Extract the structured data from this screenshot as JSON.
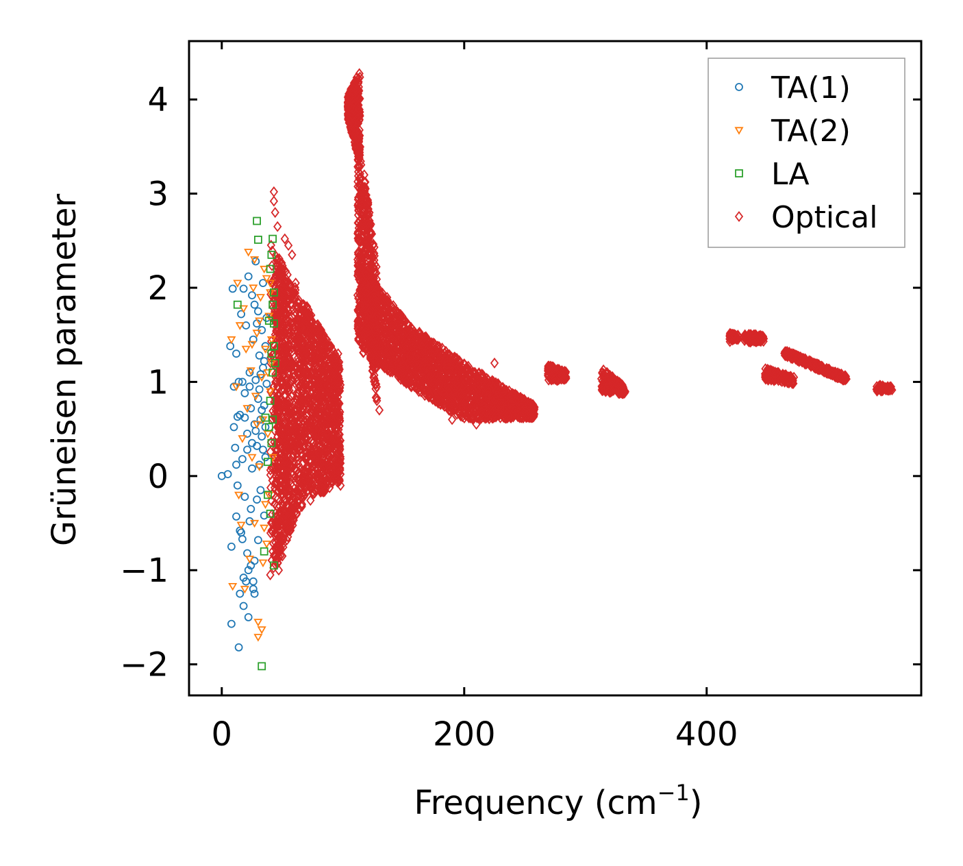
{
  "chart_data": {
    "type": "scatter",
    "xlabel": "Frequency (cm",
    "xlabel_sup": "−1",
    "xlabel_end": ")",
    "ylabel": "Grüneisen parameter",
    "xlim": [
      -27,
      577
    ],
    "ylim": [
      -2.33,
      4.62
    ],
    "xticks": [
      0,
      200,
      400
    ],
    "xtick_labels": [
      "0",
      "200",
      "400"
    ],
    "yticks": [
      -2,
      -1,
      0,
      1,
      2,
      3,
      4
    ],
    "ytick_labels": [
      "−2",
      "−1",
      "0",
      "1",
      "2",
      "3",
      "4"
    ],
    "legend_position": "top-right",
    "series": [
      {
        "name": "TA(1)",
        "marker": "circle",
        "color": "#1f77b4",
        "points": [
          [
            0,
            0
          ],
          [
            5,
            0.02
          ],
          [
            8,
            -0.75
          ],
          [
            8,
            -1.57
          ],
          [
            7,
            1.38
          ],
          [
            9,
            1.99
          ],
          [
            10,
            0.52
          ],
          [
            11,
            0.3
          ],
          [
            12,
            1.3
          ],
          [
            12,
            -0.43
          ],
          [
            13,
            0.63
          ],
          [
            13,
            -0.1
          ],
          [
            14,
            -1.82
          ],
          [
            14,
            1.0
          ],
          [
            15,
            -1.25
          ],
          [
            15,
            0.65
          ],
          [
            16,
            1.72
          ],
          [
            16,
            -0.6
          ],
          [
            17,
            0.18
          ],
          [
            17,
            -0.67
          ],
          [
            18,
            1.99
          ],
          [
            18,
            -1.08
          ],
          [
            19,
            0.88
          ],
          [
            19,
            -0.22
          ],
          [
            20,
            1.6
          ],
          [
            20,
            -1.12
          ],
          [
            21,
            0.45
          ],
          [
            21,
            -0.82
          ],
          [
            22,
            2.12
          ],
          [
            22,
            -1.5
          ],
          [
            23,
            1.1
          ],
          [
            23,
            -0.48
          ],
          [
            24,
            0.72
          ],
          [
            24,
            -0.35
          ],
          [
            25,
            1.92
          ],
          [
            25,
            0.08
          ],
          [
            26,
            -1.2
          ],
          [
            26,
            1.45
          ],
          [
            27,
            0.55
          ],
          [
            27,
            -0.9
          ],
          [
            28,
            2.28
          ],
          [
            28,
            1.02
          ],
          [
            29,
            -0.25
          ],
          [
            29,
            0.32
          ],
          [
            30,
            1.75
          ],
          [
            30,
            -0.68
          ],
          [
            31,
            0.92
          ],
          [
            31,
            1.28
          ],
          [
            32,
            -0.15
          ],
          [
            32,
            0.6
          ],
          [
            33,
            1.55
          ],
          [
            33,
            0.42
          ],
          [
            34,
            2.05
          ],
          [
            34,
            1.15
          ],
          [
            35,
            0.75
          ],
          [
            35,
            -0.42
          ],
          [
            36,
            1.38
          ],
          [
            36,
            0.2
          ],
          [
            37,
            0.98
          ],
          [
            37,
            1.68
          ],
          [
            26,
            -1.12
          ],
          [
            27,
            -1.25
          ],
          [
            24,
            -0.95
          ],
          [
            22,
            -1.0
          ],
          [
            18,
            -1.38
          ],
          [
            15,
            -0.58
          ],
          [
            12,
            0.12
          ],
          [
            10,
            0.95
          ],
          [
            28,
            0.48
          ],
          [
            29,
            1.62
          ],
          [
            30,
            0.82
          ],
          [
            31,
            0.12
          ],
          [
            32,
            1.08
          ],
          [
            33,
            0.7
          ],
          [
            34,
            0.28
          ],
          [
            35,
            1.22
          ],
          [
            36,
            0.52
          ],
          [
            23,
            0.95
          ],
          [
            25,
            0.35
          ],
          [
            27,
            1.82
          ],
          [
            21,
            0.28
          ],
          [
            19,
            0.62
          ],
          [
            17,
            1.0
          ]
        ]
      },
      {
        "name": "TA(2)",
        "marker": "triangle-down",
        "color": "#ff7f0e",
        "points": [
          [
            8,
            1.45
          ],
          [
            9,
            -1.17
          ],
          [
            12,
            0.95
          ],
          [
            13,
            2.05
          ],
          [
            14,
            -0.2
          ],
          [
            15,
            1.6
          ],
          [
            16,
            -0.52
          ],
          [
            17,
            0.4
          ],
          [
            18,
            1.78
          ],
          [
            19,
            -1.2
          ],
          [
            20,
            1.35
          ],
          [
            21,
            0.72
          ],
          [
            22,
            2.38
          ],
          [
            23,
            -0.88
          ],
          [
            24,
            1.12
          ],
          [
            25,
            0.2
          ],
          [
            26,
            2.0
          ],
          [
            27,
            -0.5
          ],
          [
            28,
            0.85
          ],
          [
            29,
            1.52
          ],
          [
            30,
            -1.55
          ],
          [
            30,
            -1.71
          ],
          [
            31,
            0.1
          ],
          [
            32,
            1.9
          ],
          [
            33,
            -1.63
          ],
          [
            34,
            0.6
          ],
          [
            35,
            2.2
          ],
          [
            36,
            1.35
          ],
          [
            37,
            -0.72
          ],
          [
            38,
            0.45
          ],
          [
            39,
            1.7
          ],
          [
            40,
            2.05
          ],
          [
            40,
            0.9
          ],
          [
            41,
            1.45
          ],
          [
            42,
            0.2
          ],
          [
            36,
            -0.3
          ],
          [
            38,
            1.1
          ],
          [
            39,
            -0.2
          ],
          [
            40,
            1.95
          ],
          [
            41,
            1.2
          ],
          [
            34,
            -0.92
          ],
          [
            35,
            -0.55
          ],
          [
            37,
            2.1
          ],
          [
            33,
            1.05
          ],
          [
            31,
            1.65
          ],
          [
            29,
            0.55
          ],
          [
            27,
            2.3
          ],
          [
            25,
            1.4
          ]
        ]
      },
      {
        "name": "LA",
        "marker": "square",
        "color": "#2ca02c",
        "points": [
          [
            13,
            1.82
          ],
          [
            29,
            2.71
          ],
          [
            30,
            2.51
          ],
          [
            33,
            -2.02
          ],
          [
            35,
            -0.8
          ],
          [
            36,
            0.62
          ],
          [
            38,
            -0.2
          ],
          [
            39,
            0.52
          ],
          [
            40,
            2.2
          ],
          [
            41,
            1.3
          ],
          [
            42,
            2.52
          ],
          [
            42,
            0.6
          ],
          [
            43,
            -0.95
          ],
          [
            43,
            1.95
          ],
          [
            43,
            1.62
          ],
          [
            42,
            1.1
          ],
          [
            41,
            0.35
          ],
          [
            40,
            -0.4
          ],
          [
            39,
            1.65
          ],
          [
            38,
            0.15
          ],
          [
            41,
            2.35
          ],
          [
            42,
            1.82
          ],
          [
            43,
            1.38
          ],
          [
            40,
            0.8
          ],
          [
            44,
            1.2
          ]
        ]
      },
      {
        "name": "Optical",
        "marker": "diamond",
        "color": "#d62728",
        "bands": [
          {
            "type": "lines",
            "x": [
              40,
              56
            ],
            "y": [
              -1.1,
              2.5
            ],
            "count": 300
          },
          {
            "type": "spread",
            "x": [
              44,
              64
            ],
            "y_low": [
              -1.0,
              -0.35
            ],
            "y_high": [
              2.4,
              1.95
            ],
            "count": 600
          },
          {
            "type": "spread",
            "x": [
              64,
              98
            ],
            "y_low": [
              -0.35,
              -0.05
            ],
            "y_high": [
              1.95,
              1.2
            ],
            "count": 1000
          },
          {
            "type": "spread",
            "x": [
              104,
              114
            ],
            "y_low": [
              3.8,
              3.3
            ],
            "y_high": [
              4.05,
              4.3
            ],
            "count": 350
          },
          {
            "type": "spread",
            "x": [
              112,
              128
            ],
            "y_low": [
              2.2,
              0.75
            ],
            "y_high": [
              3.7,
              2.25
            ],
            "count": 450
          },
          {
            "type": "spread",
            "x": [
              112,
              155
            ],
            "y_low": [
              1.35,
              0.95
            ],
            "y_high": [
              2.3,
              1.6
            ],
            "count": 700
          },
          {
            "type": "spread",
            "x": [
              155,
              200
            ],
            "y_low": [
              0.95,
              0.6
            ],
            "y_high": [
              1.6,
              1.2
            ],
            "count": 700
          },
          {
            "type": "spread",
            "x": [
              200,
              258
            ],
            "y_low": [
              0.6,
              0.62
            ],
            "y_high": [
              1.2,
              0.75
            ],
            "count": 700
          },
          {
            "type": "spread",
            "x": [
              269,
              284
            ],
            "y_low": [
              1.0,
              1.02
            ],
            "y_high": [
              1.18,
              1.12
            ],
            "count": 150
          },
          {
            "type": "spread",
            "x": [
              313,
              333
            ],
            "y_low": [
              0.9,
              0.87
            ],
            "y_high": [
              1.15,
              0.95
            ],
            "count": 180
          },
          {
            "type": "spread",
            "x": [
              419,
              426
            ],
            "y_low": [
              1.42,
              1.44
            ],
            "y_high": [
              1.52,
              1.5
            ],
            "count": 40
          },
          {
            "type": "spread",
            "x": [
              431,
              447
            ],
            "y_low": [
              1.42,
              1.43
            ],
            "y_high": [
              1.52,
              1.49
            ],
            "count": 90
          },
          {
            "type": "spread",
            "x": [
              448,
              472
            ],
            "y_low": [
              1.02,
              0.98
            ],
            "y_high": [
              1.15,
              1.05
            ],
            "count": 130
          },
          {
            "type": "spread",
            "x": [
              464,
              516
            ],
            "y_low": [
              1.28,
              1.0
            ],
            "y_high": [
              1.34,
              1.06
            ],
            "count": 260
          },
          {
            "type": "spread",
            "x": [
              540,
              553
            ],
            "y_low": [
              0.9,
              0.91
            ],
            "y_high": [
              0.97,
              0.95
            ],
            "count": 70
          }
        ],
        "outliers": [
          [
            43,
            3.02
          ],
          [
            43,
            2.92
          ],
          [
            44,
            2.8
          ],
          [
            46,
            2.65
          ],
          [
            52,
            2.52
          ],
          [
            55,
            2.45
          ],
          [
            58,
            2.35
          ],
          [
            61,
            2.05
          ],
          [
            66,
            1.82
          ],
          [
            72,
            1.72
          ],
          [
            78,
            1.55
          ],
          [
            84,
            1.5
          ],
          [
            90,
            1.38
          ],
          [
            96,
            1.3
          ],
          [
            98,
            -0.1
          ],
          [
            96,
            -0.05
          ],
          [
            92,
            0.15
          ],
          [
            85,
            0.35
          ],
          [
            80,
            0.25
          ],
          [
            70,
            0.1
          ],
          [
            60,
            -0.3
          ],
          [
            55,
            -0.45
          ],
          [
            50,
            -0.85
          ],
          [
            47,
            -1.0
          ],
          [
            44,
            -0.6
          ],
          [
            40,
            -1.05
          ],
          [
            42,
            -0.8
          ],
          [
            130,
            0.7
          ],
          [
            128,
            0.8
          ],
          [
            125,
            1.9
          ],
          [
            120,
            2.5
          ],
          [
            150,
            1.5
          ],
          [
            180,
            1.25
          ],
          [
            190,
            0.6
          ],
          [
            210,
            0.55
          ],
          [
            225,
            1.2
          ],
          [
            245,
            0.8
          ],
          [
            255,
            0.66
          ]
        ]
      }
    ]
  }
}
